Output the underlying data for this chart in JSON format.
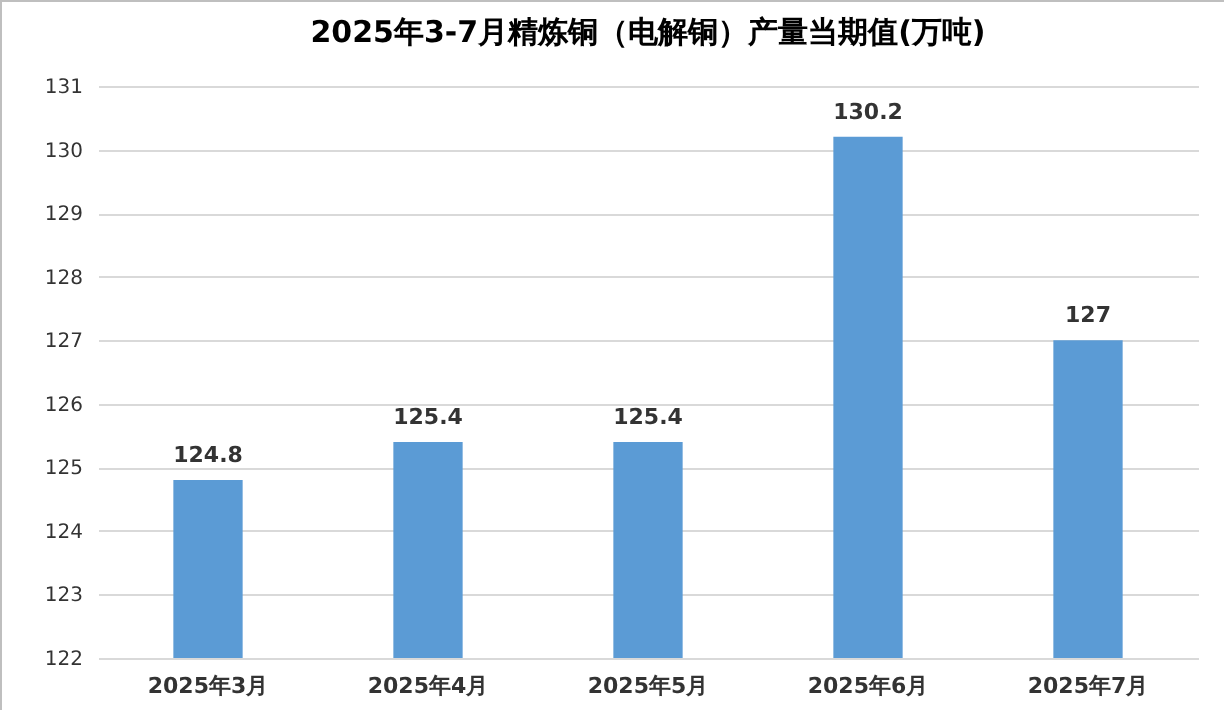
{
  "chart_data": {
    "type": "bar",
    "title": "2025年3-7月精炼铜（电解铜）产量当期值(万吨)",
    "categories": [
      "2025年3月",
      "2025年4月",
      "2025年5月",
      "2025年6月",
      "2025年7月"
    ],
    "values": [
      124.8,
      125.4,
      125.4,
      130.2,
      127
    ],
    "color": "#5b9bd5",
    "ylim": [
      122,
      131
    ],
    "yticks": [
      122,
      123,
      124,
      125,
      126,
      127,
      128,
      129,
      130,
      131
    ],
    "grid": "y",
    "data_labels": true
  }
}
